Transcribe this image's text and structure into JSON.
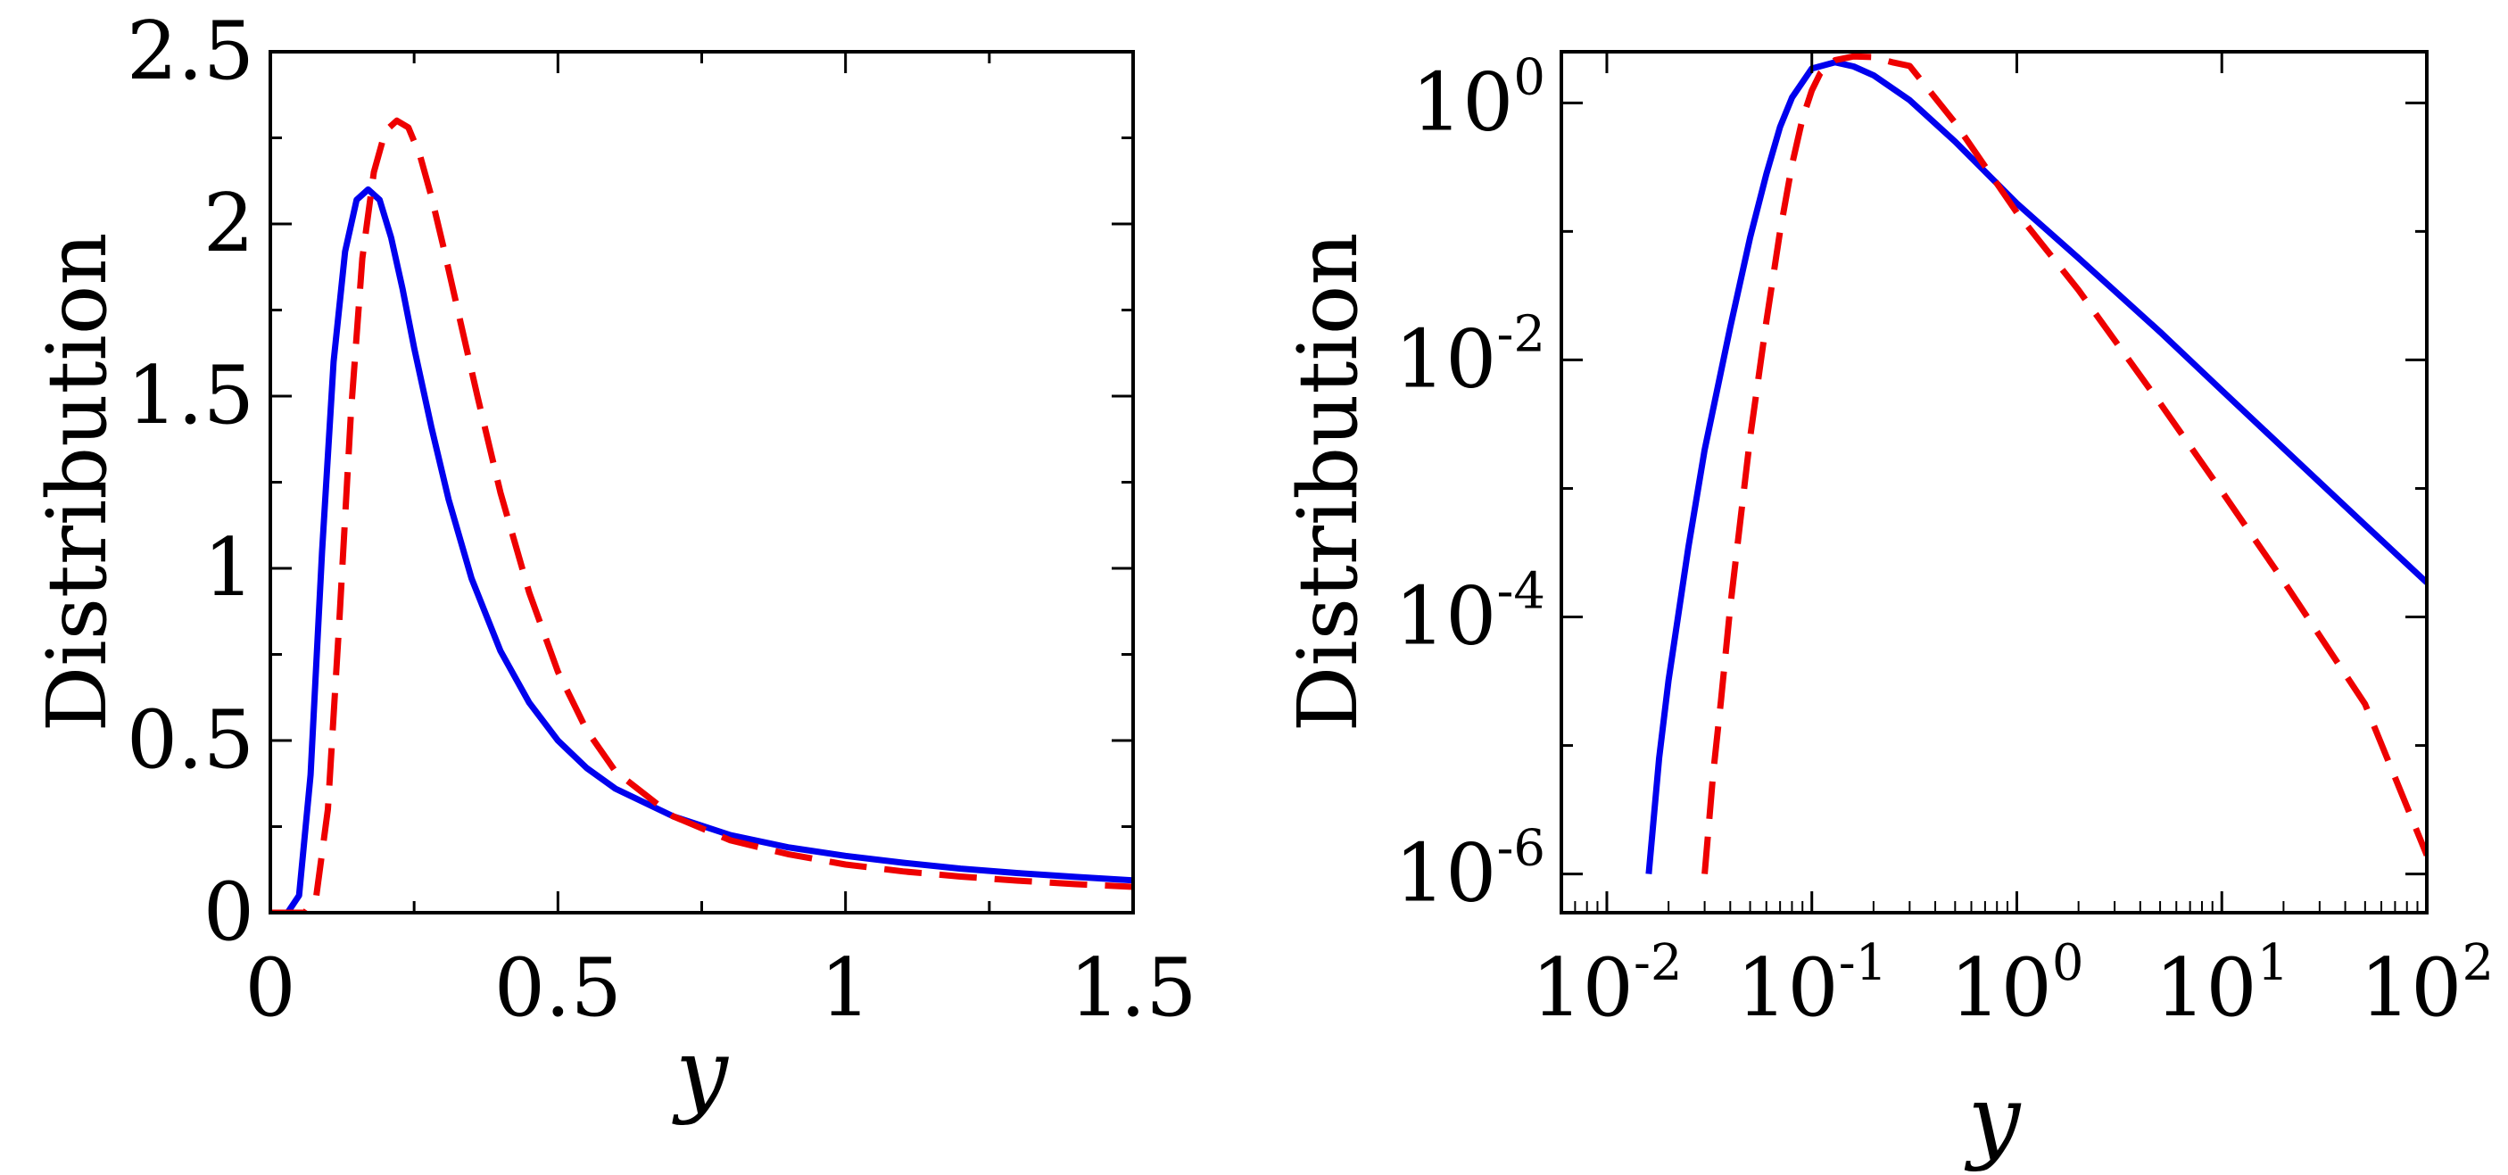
{
  "chart_data": [
    {
      "type": "line",
      "panel": "left",
      "xscale": "linear",
      "yscale": "linear",
      "xlim": [
        0,
        1.5
      ],
      "ylim": [
        0,
        2.5
      ],
      "xlabel": "y",
      "ylabel": "Distribution",
      "xticks": [
        {
          "value": 0,
          "label": "0"
        },
        {
          "value": 0.5,
          "label": "0.5"
        },
        {
          "value": 1,
          "label": "1"
        },
        {
          "value": 1.5,
          "label": "1.5"
        }
      ],
      "yticks": [
        {
          "value": 0,
          "label": "0"
        },
        {
          "value": 0.5,
          "label": "0.5"
        },
        {
          "value": 1,
          "label": "1"
        },
        {
          "value": 1.5,
          "label": "1.5"
        },
        {
          "value": 2,
          "label": "2"
        },
        {
          "value": 2.5,
          "label": "2.5"
        }
      ],
      "series": [
        {
          "name": "blue-solid",
          "color": "#0000ee",
          "style": "solid",
          "x": [
            0.0,
            0.03,
            0.05,
            0.07,
            0.09,
            0.11,
            0.13,
            0.15,
            0.17,
            0.19,
            0.21,
            0.23,
            0.25,
            0.28,
            0.31,
            0.35,
            0.4,
            0.45,
            0.5,
            0.55,
            0.6,
            0.7,
            0.8,
            0.9,
            1.0,
            1.1,
            1.2,
            1.3,
            1.4,
            1.5
          ],
          "y": [
            0.0,
            0.0,
            0.05,
            0.4,
            1.05,
            1.6,
            1.92,
            2.07,
            2.1,
            2.07,
            1.96,
            1.81,
            1.64,
            1.41,
            1.2,
            0.97,
            0.76,
            0.61,
            0.5,
            0.42,
            0.36,
            0.28,
            0.225,
            0.19,
            0.165,
            0.145,
            0.128,
            0.115,
            0.104,
            0.094
          ]
        },
        {
          "name": "red-dashed",
          "color": "#ee0000",
          "style": "dashed",
          "x": [
            0.0,
            0.06,
            0.08,
            0.1,
            0.12,
            0.14,
            0.16,
            0.18,
            0.2,
            0.22,
            0.24,
            0.26,
            0.28,
            0.3,
            0.33,
            0.36,
            0.4,
            0.45,
            0.5,
            0.55,
            0.6,
            0.7,
            0.8,
            0.9,
            1.0,
            1.1,
            1.2,
            1.3,
            1.4,
            1.5
          ],
          "y": [
            0.0,
            0.0,
            0.05,
            0.3,
            0.85,
            1.45,
            1.9,
            2.15,
            2.27,
            2.3,
            2.28,
            2.2,
            2.08,
            1.94,
            1.72,
            1.5,
            1.22,
            0.93,
            0.7,
            0.53,
            0.41,
            0.28,
            0.21,
            0.17,
            0.14,
            0.12,
            0.105,
            0.093,
            0.083,
            0.075
          ]
        }
      ]
    },
    {
      "type": "line",
      "panel": "right",
      "xscale": "log",
      "yscale": "log",
      "xlim": [
        0.006,
        100
      ],
      "ylim": [
        5e-07,
        2.5
      ],
      "xlabel": "y",
      "ylabel": "Distribution",
      "xticks": [
        {
          "value": 0.01,
          "base": "10",
          "exp": "-2"
        },
        {
          "value": 0.1,
          "base": "10",
          "exp": "-1"
        },
        {
          "value": 1,
          "base": "10",
          "exp": "0"
        },
        {
          "value": 10,
          "base": "10",
          "exp": "1"
        },
        {
          "value": 100,
          "base": "10",
          "exp": "2"
        }
      ],
      "yticks": [
        {
          "value": 1e-06,
          "base": "10",
          "exp": "-6"
        },
        {
          "value": 0.0001,
          "base": "10",
          "exp": "-4"
        },
        {
          "value": 0.01,
          "base": "10",
          "exp": "-2"
        },
        {
          "value": 1,
          "base": "10",
          "exp": "0"
        }
      ],
      "series": [
        {
          "name": "blue-solid",
          "color": "#0000ee",
          "style": "solid",
          "x": [
            0.016,
            0.018,
            0.02,
            0.025,
            0.03,
            0.04,
            0.05,
            0.06,
            0.07,
            0.08,
            0.1,
            0.13,
            0.16,
            0.2,
            0.3,
            0.5,
            1.0,
            2.0,
            5.0,
            10,
            20,
            50,
            100
          ],
          "y": [
            1e-06,
            8e-06,
            3.2e-05,
            0.00035,
            0.002,
            0.018,
            0.09,
            0.28,
            0.65,
            1.1,
            1.85,
            2.07,
            1.92,
            1.64,
            1.05,
            0.5,
            0.165,
            0.062,
            0.0165,
            0.0058,
            0.00205,
            0.00052,
            0.000185
          ]
        },
        {
          "name": "red-dashed",
          "color": "#ee0000",
          "style": "dashed",
          "x": [
            0.03,
            0.033,
            0.036,
            0.04,
            0.045,
            0.05,
            0.06,
            0.07,
            0.08,
            0.09,
            0.1,
            0.11,
            0.13,
            0.16,
            0.2,
            0.25,
            0.3,
            0.5,
            1.0,
            2.0,
            5.0,
            10,
            20,
            50,
            100
          ],
          "y": [
            1e-06,
            6e-06,
            2.2e-05,
            0.00012,
            0.0006,
            0.0025,
            0.02,
            0.1,
            0.33,
            0.75,
            1.25,
            1.7,
            2.15,
            2.3,
            2.27,
            2.06,
            1.94,
            0.7,
            0.14,
            0.035,
            0.0046,
            0.00095,
            0.00019,
            2.1e-05,
            1.4e-06
          ]
        }
      ]
    }
  ]
}
